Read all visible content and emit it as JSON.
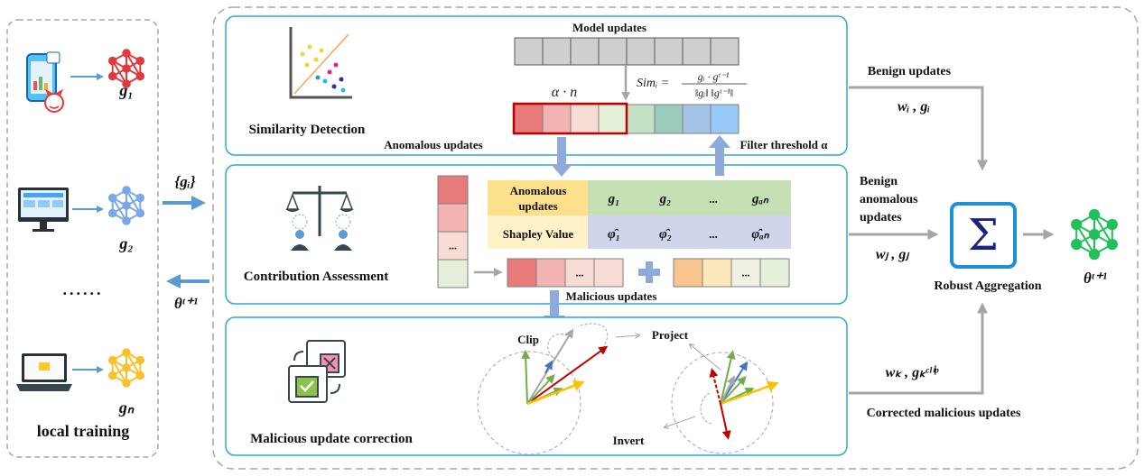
{
  "left_panel": {
    "clients": [
      {
        "device": "smartphone-with-malware",
        "label": "g₁",
        "color": "#e03a3e"
      },
      {
        "device": "desktop-monitor",
        "label": "g₂",
        "color": "#7aa7e6"
      },
      {
        "device": "laptop",
        "label": "gₙ",
        "color": "#f7c12d"
      }
    ],
    "ellipsis": "......",
    "caption": "local training"
  },
  "links": {
    "upload_label": "{gᵢ}",
    "download_label": "θᵗ⁺¹"
  },
  "similarity": {
    "title": "Similarity Detection",
    "model_updates_label": "Model updates",
    "model_update_cells": 8,
    "alpha_n_label": "α · n",
    "formula_lhs": "Simᵢ =",
    "formula_num": "gᵢ · gᵗ⁻¹",
    "formula_den": "‖gᵢ‖ ‖gᵗ⁻¹‖",
    "sorted_cell_colors": [
      "#e87a7a",
      "#f2b3b3",
      "#f7dbd5",
      "#e4f0da",
      "#c2e1c4",
      "#9ccbbe",
      "#a5c3e6",
      "#98c8f5"
    ],
    "anomalous_label": "Anomalous  updates",
    "filter_label": "Filter threshold α"
  },
  "contribution": {
    "title": "Contribution Assessment",
    "column_cells": [
      {
        "color": "#e87a7a",
        "text": ""
      },
      {
        "color": "#f2b3b3",
        "text": ""
      },
      {
        "color": "#f7dbd5",
        "text": "..."
      },
      {
        "color": "#e4f0da",
        "text": ""
      }
    ],
    "table": {
      "row1_header": [
        "Anomalous",
        "updates"
      ],
      "row1_values": [
        "g₁",
        "g₂",
        "...",
        "gₐₙ"
      ],
      "row2_header": "Shapley Value",
      "row2_values": [
        "φ̂₁",
        "φ̂₂",
        "...",
        "φ̂ₐₙ"
      ]
    },
    "malicious_cells": [
      {
        "color": "#e87a7a",
        "text": ""
      },
      {
        "color": "#f2b3b3",
        "text": ""
      },
      {
        "color": "#f7dbd5",
        "text": "..."
      },
      {
        "color": "#f7dbd5",
        "text": ""
      }
    ],
    "benign_cells": [
      {
        "color": "#f9c58f",
        "text": ""
      },
      {
        "color": "#fde7bb",
        "text": ""
      },
      {
        "color": "#f0f0e4",
        "text": "..."
      },
      {
        "color": "#e4f0da",
        "text": ""
      }
    ],
    "malicious_label": "Malicious updates"
  },
  "correction": {
    "title": "Malicious update correction",
    "clip_label": "Clip",
    "project_label": "Project",
    "invert_label": "Invert"
  },
  "aggregation": {
    "benign_label": "Benign updates",
    "benign_weights": "wᵢ , gᵢ",
    "benign_anomalous_label": [
      "Benign",
      "anomalous",
      "updates"
    ],
    "benign_anomalous_weights": "wⱼ , gⱼ",
    "corrected_weights": "wₖ , gₖᶜˡⁱᵖ",
    "corrected_label": "Corrected malicious updates",
    "aggregator_symbol": "Σ",
    "aggregator_label": "Robust Aggregation",
    "output_label": "θᵗ⁺¹",
    "output_color": "#22c05a"
  },
  "colors": {
    "panel_border": "#2aa8e0",
    "flow_arrow": "#8eaadb",
    "gray_arrow": "#a6a6a6",
    "client_arrow": "#5b9bd5"
  }
}
